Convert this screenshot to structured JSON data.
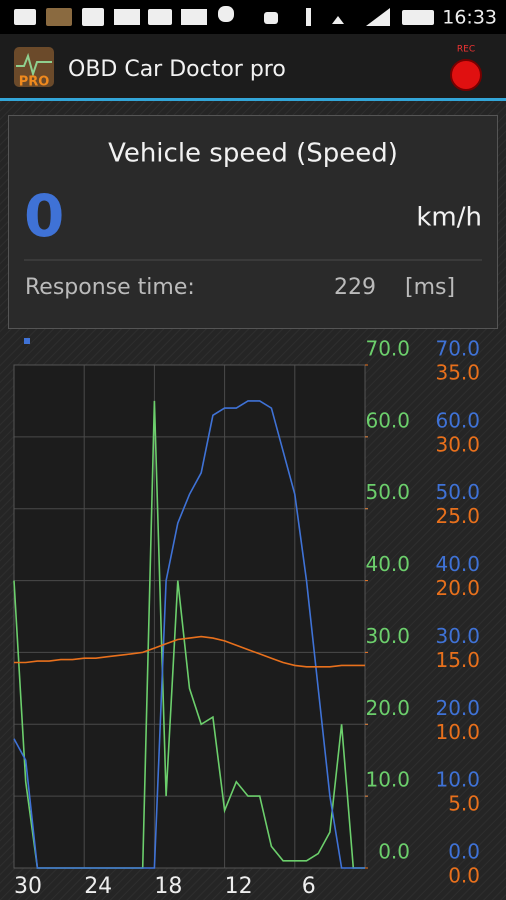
{
  "status_bar": {
    "time": "16:33"
  },
  "app_bar": {
    "logo": "PRO",
    "title": "OBD Car Doctor pro",
    "rec": "REC"
  },
  "panel": {
    "title": "Vehicle speed (Speed)",
    "value": "0",
    "unit": "km/h",
    "response_label": "Response time:",
    "response_value": "229",
    "response_unit": "[ms]"
  },
  "chart_data": {
    "type": "line",
    "x": [
      30,
      29,
      28,
      27,
      26,
      25,
      24,
      23,
      22,
      21,
      20,
      19,
      18,
      17,
      16,
      15,
      14,
      13,
      12,
      11,
      10,
      9,
      8,
      7,
      6,
      5,
      4,
      3,
      2,
      1,
      0
    ],
    "xlim": [
      30,
      0
    ],
    "xticks": [
      30,
      24,
      18,
      12,
      6
    ],
    "ylim": [
      0,
      70
    ],
    "yticks": [
      {
        "value": 0,
        "label": "0.0"
      },
      {
        "value": 10,
        "label": "10.0"
      },
      {
        "value": 20,
        "label": "20.0"
      },
      {
        "value": 30,
        "label": "30.0"
      },
      {
        "value": 40,
        "label": "40.0"
      },
      {
        "value": 50,
        "label": "50.0"
      },
      {
        "value": 60,
        "label": "60.0"
      },
      {
        "value": 70,
        "label": "70.0"
      }
    ],
    "y2lim": [
      0,
      70
    ],
    "y2ticks": [
      {
        "value": 0,
        "label": "0.0"
      },
      {
        "value": 10,
        "label": "10.0"
      },
      {
        "value": 20,
        "label": "20.0"
      },
      {
        "value": 30,
        "label": "30.0"
      },
      {
        "value": 40,
        "label": "40.0"
      },
      {
        "value": 50,
        "label": "50.0"
      },
      {
        "value": 60,
        "label": "60.0"
      },
      {
        "value": 70,
        "label": "70.0"
      }
    ],
    "y3lim": [
      0,
      35
    ],
    "y3ticks": [
      {
        "value": 0,
        "label": "0.0"
      },
      {
        "value": 5,
        "label": "5.0"
      },
      {
        "value": 10,
        "label": "10.0"
      },
      {
        "value": 15,
        "label": "15.0"
      },
      {
        "value": 20,
        "label": "20.0"
      },
      {
        "value": 25,
        "label": "25.0"
      },
      {
        "value": 30,
        "label": "30.0"
      },
      {
        "value": 35,
        "label": "35.0"
      }
    ],
    "y_color": "#6ccf6c",
    "y2_color": "#3f72d6",
    "y3_color": "#e8701c",
    "grid": true,
    "series": [
      {
        "color": "#6ccf6c",
        "axis": "y",
        "values": [
          40,
          12,
          0,
          0,
          0,
          0,
          0,
          0,
          0,
          0,
          0,
          0,
          65,
          10,
          40,
          25,
          20,
          21,
          8,
          12,
          10,
          10,
          3,
          1,
          1,
          1,
          2,
          5,
          20,
          0,
          0
        ]
      },
      {
        "color": "#3f72d6",
        "axis": "y2",
        "values": [
          18,
          15,
          0,
          0,
          0,
          0,
          0,
          0,
          0,
          0,
          0,
          0,
          0,
          40,
          48,
          52,
          55,
          63,
          64,
          64,
          65,
          65,
          64,
          58,
          52,
          40,
          25,
          10,
          0,
          0,
          0
        ]
      },
      {
        "color": "#e8701c",
        "axis": "y3",
        "values": [
          14.3,
          14.3,
          14.4,
          14.4,
          14.5,
          14.5,
          14.6,
          14.6,
          14.7,
          14.8,
          14.9,
          15.0,
          15.3,
          15.6,
          15.9,
          16.0,
          16.1,
          16.0,
          15.8,
          15.5,
          15.2,
          14.9,
          14.6,
          14.3,
          14.1,
          14.0,
          14.0,
          14.0,
          14.1,
          14.1,
          14.1
        ]
      }
    ]
  }
}
